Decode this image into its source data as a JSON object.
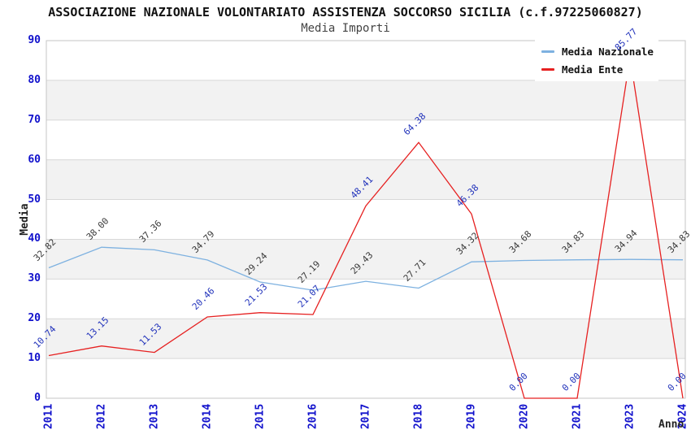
{
  "chart_data": {
    "type": "line",
    "title": "ASSOCIAZIONE NAZIONALE VOLONTARIATO ASSISTENZA SOCCORSO SICILIA (c.f.97225060827)",
    "subtitle": "Media Importi",
    "xlabel": "Anno",
    "ylabel": "Media",
    "ylim": [
      0,
      90
    ],
    "yticks": [
      0,
      10,
      20,
      30,
      40,
      50,
      60,
      70,
      80,
      90
    ],
    "categories": [
      "2011",
      "2012",
      "2013",
      "2014",
      "2015",
      "2016",
      "2017",
      "2018",
      "2019",
      "2020",
      "2021",
      "2023",
      "2024"
    ],
    "series": [
      {
        "name": "Media Nazionale",
        "color": "#7db1e0",
        "label_color": "#3a3a3a",
        "values": [
          32.82,
          38.0,
          37.36,
          34.79,
          29.24,
          27.19,
          29.43,
          27.71,
          34.32,
          34.68,
          34.83,
          34.94,
          34.83
        ]
      },
      {
        "name": "Media Ente",
        "color": "#e62020",
        "label_color": "#2233bb",
        "values": [
          10.74,
          13.15,
          11.53,
          20.46,
          21.53,
          21.07,
          48.41,
          64.38,
          46.38,
          0.0,
          0.0,
          85.77,
          0.0
        ]
      }
    ],
    "legend_position": "top-right",
    "grid": "horizontal gridlines every 10, alternating shaded bands",
    "band_color": "#f2f2f2",
    "gridline_color": "#d8d8d8",
    "frame_color": "#c4c4c4",
    "tick_label_color": "#1111cc"
  }
}
